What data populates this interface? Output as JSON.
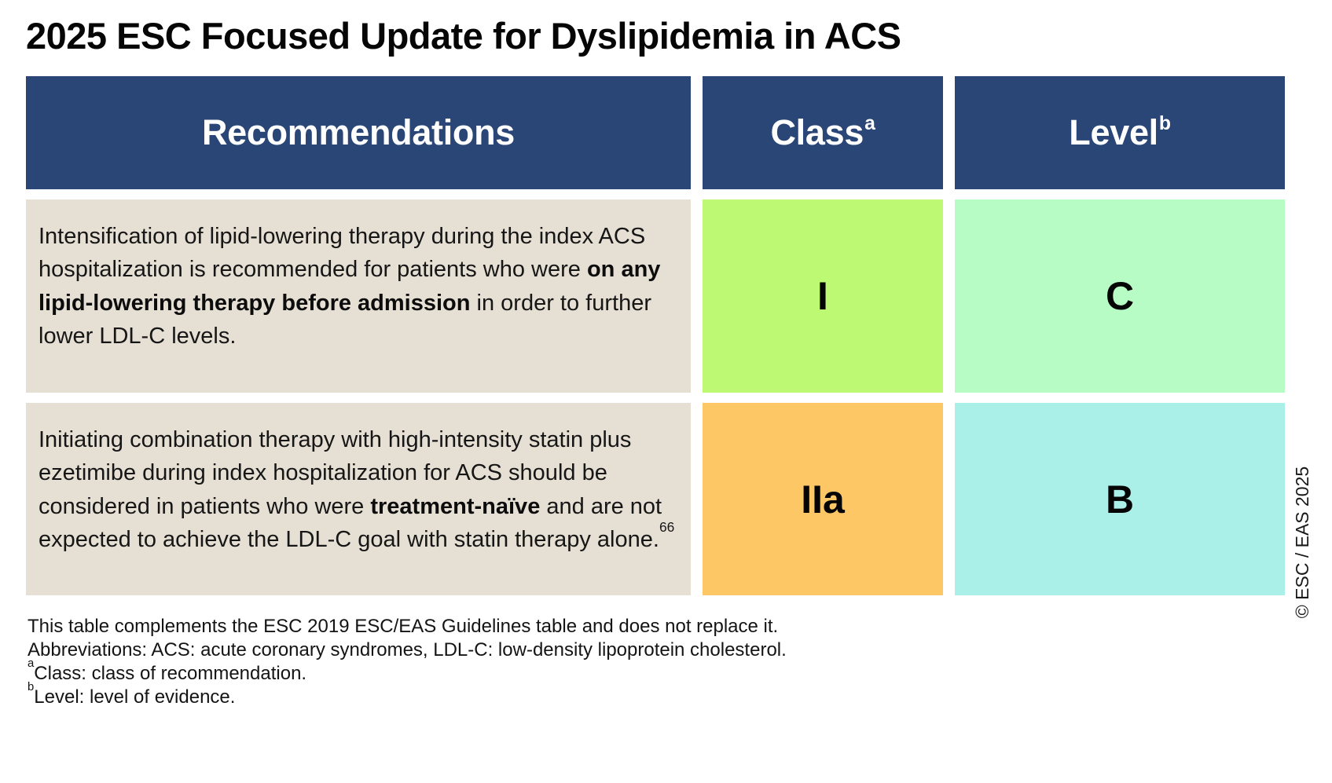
{
  "title": "2025 ESC Focused Update for Dyslipidemia in ACS",
  "colors": {
    "header_bg": "#2a4677",
    "header_text": "#ffffff",
    "recommendation_bg": "#e6dfd4",
    "class_I_bg": "#bdf973",
    "level_C_bg": "#b7fcc5",
    "class_IIa_bg": "#fcc764",
    "level_B_bg": "#abefe9",
    "body_text": "#161616",
    "page_bg": "#ffffff"
  },
  "table": {
    "headers": {
      "recommendations": "Recommendations",
      "class": [
        {
          "text": "Class"
        },
        {
          "text": "a",
          "sup": true
        }
      ],
      "level": [
        {
          "text": "Level"
        },
        {
          "text": "b",
          "sup": true
        }
      ]
    },
    "rows": [
      {
        "recommendation": [
          {
            "text": "Intensification of lipid-lowering therapy during the index ACS hospitalization is recommended for patients who were "
          },
          {
            "text": "on any lipid-lowering therapy before admission",
            "bold": true
          },
          {
            "text": " in order to further lower LDL-C levels."
          }
        ],
        "class": "I",
        "class_color": "#bdf973",
        "level": "C",
        "level_color": "#b7fcc5"
      },
      {
        "recommendation": [
          {
            "text": "Initiating combination therapy with high-intensity statin plus ezetimibe during index hospitalization for ACS should be considered in patients who were "
          },
          {
            "text": "treatment-naïve",
            "bold": true
          },
          {
            "text": " and are not expected to achieve the LDL-C goal with statin therapy alone."
          },
          {
            "text": "66",
            "sup": true
          }
        ],
        "class": "IIa",
        "class_color": "#fcc764",
        "level": "B",
        "level_color": "#abefe9"
      }
    ]
  },
  "footnotes": [
    [
      {
        "text": "This table complements the ESC 2019 ESC/EAS Guidelines table and does not replace it."
      }
    ],
    [
      {
        "text": "Abbreviations: ACS: acute coronary syndromes, LDL-C: low-density lipoprotein cholesterol."
      }
    ],
    [
      {
        "text": "a",
        "sup": true
      },
      {
        "text": "Class: class of recommendation."
      }
    ],
    [
      {
        "text": "b",
        "sup": true
      },
      {
        "text": "Level: level of evidence."
      }
    ]
  ],
  "copyright": "© ESC / EAS 2025"
}
